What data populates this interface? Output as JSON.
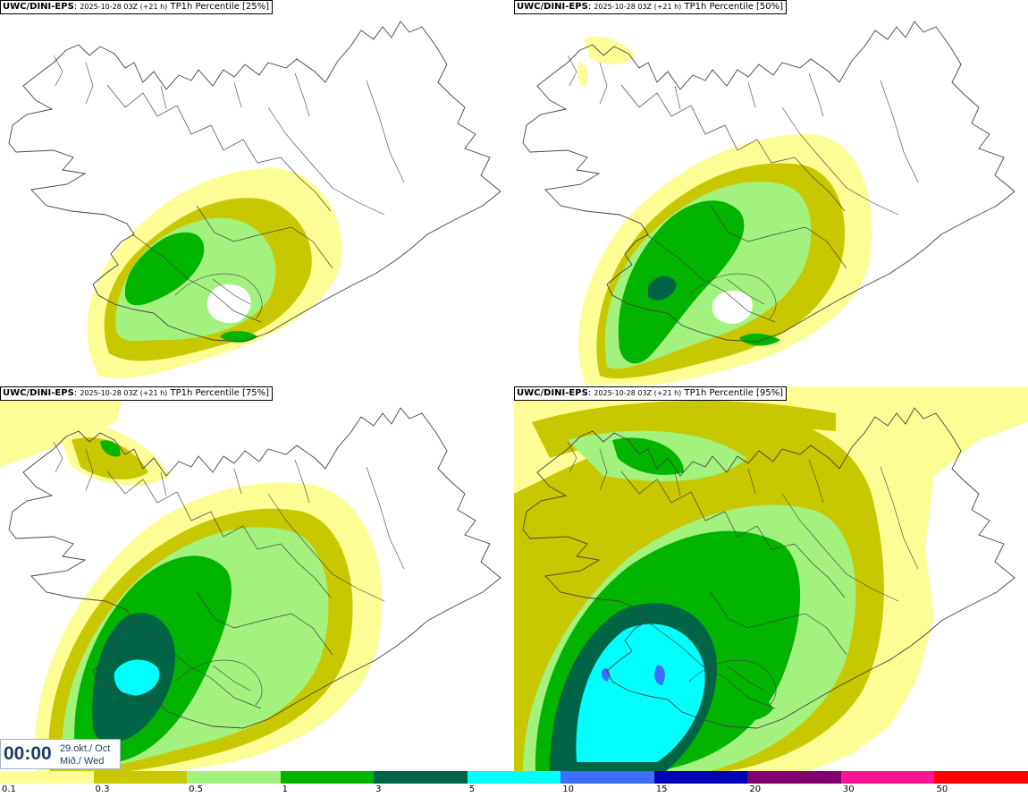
{
  "panels": [
    {
      "model": "UWC/DINI-EPS",
      "meta": "2025-10-28 03Z (+21 h)",
      "label": "TP1h Percentile [25%]"
    },
    {
      "model": "UWC/DINI-EPS",
      "meta": "2025-10-28 03Z (+21 h)",
      "label": "TP1h Percentile [50%]"
    },
    {
      "model": "UWC/DINI-EPS",
      "meta": "2025-10-28 03Z (+21 h)",
      "label": "TP1h Percentile [75%]"
    },
    {
      "model": "UWC/DINI-EPS",
      "meta": "2025-10-28 03Z (+21 h)",
      "label": "TP1h Percentile [95%]"
    }
  ],
  "timestamp": {
    "time": "00:00",
    "date_line1": "29.okt./ Oct",
    "date_line2": "Mið./ Wed"
  },
  "legend": {
    "ticks": [
      "0.1",
      "0.3",
      "0.5",
      "1",
      "3",
      "5",
      "10",
      "15",
      "20",
      "30",
      "50"
    ],
    "colors": [
      "#fdfd96",
      "#c8c800",
      "#a3f27e",
      "#00b400",
      "#006446",
      "#00ffff",
      "#3c6eff",
      "#0000b4",
      "#82006e",
      "#ff1493",
      "#ff0000"
    ]
  },
  "colors": {
    "lvl1": "#fdfd96",
    "lvl2": "#c8c800",
    "lvl3": "#a3f27e",
    "lvl4": "#00b400",
    "lvl5": "#006446",
    "lvl6": "#00ffff",
    "lvl7": "#3c6eff",
    "coast": "#444444"
  }
}
